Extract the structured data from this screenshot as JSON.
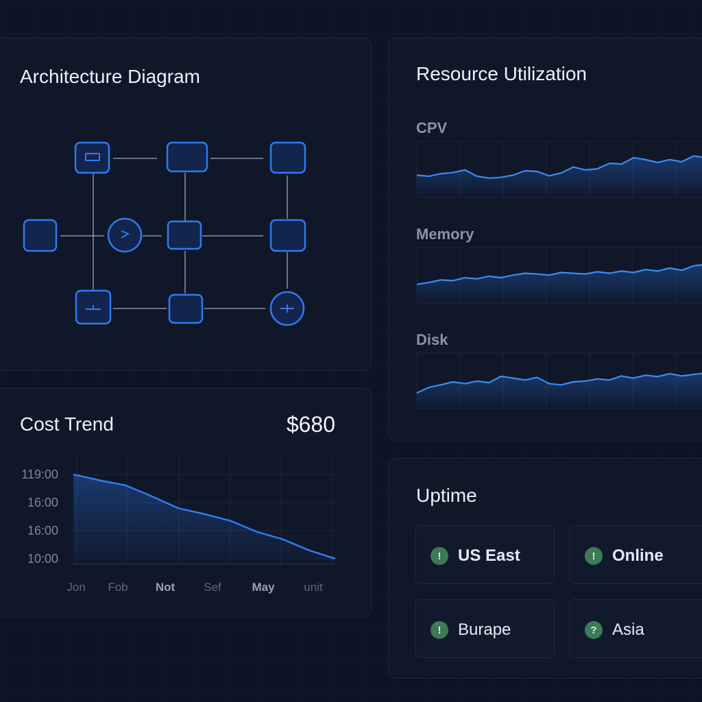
{
  "architecture": {
    "title": "Architecture Diagram"
  },
  "cost": {
    "title": "Cost Trend",
    "value": "$680",
    "chart_data": {
      "type": "area",
      "y_tick_labels": [
        "119:00",
        "16:00",
        "16:00",
        "10:00"
      ],
      "x_tick_labels": [
        "Jon",
        "Fob",
        "Not",
        "Sef",
        "May",
        "unit"
      ],
      "values": [
        1.0,
        0.93,
        0.87,
        0.74,
        0.6,
        0.53,
        0.45,
        0.32,
        0.23,
        0.1,
        0.0
      ],
      "grid": true
    }
  },
  "resources": {
    "title": "Resource Utilization",
    "chart_data": [
      {
        "type": "area",
        "series": [
          {
            "name": "CPV",
            "values": [
              0.38,
              0.35,
              0.42,
              0.45,
              0.52,
              0.35,
              0.3,
              0.32,
              0.38,
              0.5,
              0.48,
              0.36,
              0.44,
              0.6,
              0.52,
              0.55,
              0.7,
              0.68,
              0.85,
              0.8,
              0.72,
              0.8,
              0.74,
              0.9,
              0.85,
              0.88
            ]
          }
        ]
      },
      {
        "type": "area",
        "series": [
          {
            "name": "Memory",
            "values": [
              0.3,
              0.35,
              0.42,
              0.4,
              0.48,
              0.45,
              0.52,
              0.48,
              0.55,
              0.6,
              0.58,
              0.55,
              0.62,
              0.6,
              0.58,
              0.64,
              0.6,
              0.66,
              0.62,
              0.7,
              0.66,
              0.74,
              0.68,
              0.8,
              0.84,
              0.86
            ]
          }
        ]
      },
      {
        "type": "area",
        "series": [
          {
            "name": "Disk",
            "values": [
              0.2,
              0.35,
              0.42,
              0.5,
              0.45,
              0.52,
              0.48,
              0.65,
              0.6,
              0.55,
              0.62,
              0.45,
              0.42,
              0.5,
              0.52,
              0.58,
              0.55,
              0.66,
              0.6,
              0.68,
              0.64,
              0.72,
              0.66,
              0.7,
              0.74,
              0.78
            ]
          }
        ]
      }
    ]
  },
  "uptime": {
    "title": "Uptime",
    "regions": [
      {
        "label": "US East",
        "icon": "!",
        "status_color": "#3d7a56"
      },
      {
        "label": "Online",
        "icon": "!",
        "status_color": "#3d7a56"
      },
      {
        "label": "Burape",
        "icon": "!",
        "status_color": "#3d7a56"
      },
      {
        "label": "Asia",
        "icon": "?",
        "status_color": "#3d7a56"
      }
    ]
  },
  "colors": {
    "accent": "#2f7bf0",
    "node_fill": "#13254d",
    "background": "#0d1426",
    "panel": "#0f1729"
  }
}
